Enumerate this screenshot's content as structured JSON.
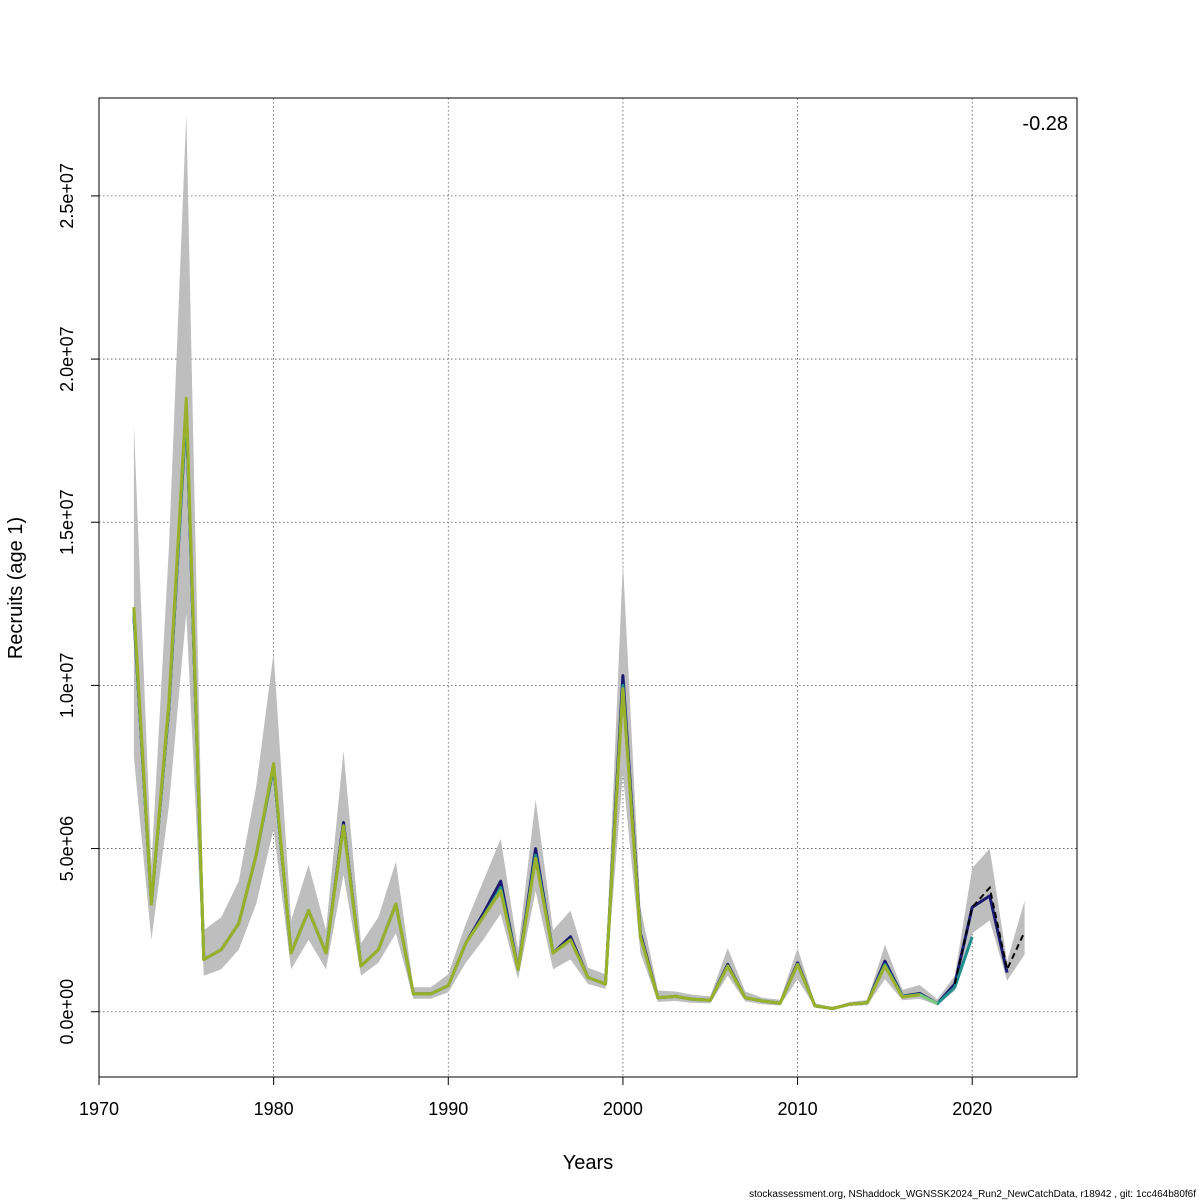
{
  "chart_data": {
    "type": "line",
    "title": "",
    "xlabel": "Years",
    "ylabel": "Recruits (age 1)",
    "annotation": "-0.28",
    "footer": "stockassessment.org, NShaddock_WGNSSK2024_Run2_NewCatchData, r18942 , git: 1cc464b80f6f",
    "xlim": [
      1970,
      2026
    ],
    "ylim": [
      -2000000,
      28000000
    ],
    "x_ticks": [
      1970,
      1980,
      1990,
      2000,
      2010,
      2020
    ],
    "x_tick_labels": [
      "1970",
      "1980",
      "1990",
      "2000",
      "2010",
      "2020"
    ],
    "y_ticks": [
      0,
      5000000,
      10000000,
      15000000,
      20000000,
      25000000
    ],
    "y_tick_labels": [
      "0.0e+00",
      "5.0e+06",
      "1.0e+07",
      "1.5e+07",
      "2.0e+07",
      "2.5e+07"
    ],
    "grid": true,
    "band_color": "#bebebe",
    "band": {
      "years": [
        1972,
        1973,
        1974,
        1975,
        1976,
        1977,
        1978,
        1979,
        1980,
        1981,
        1982,
        1983,
        1984,
        1985,
        1986,
        1987,
        1988,
        1989,
        1990,
        1991,
        1992,
        1993,
        1994,
        1995,
        1996,
        1997,
        1998,
        1999,
        2000,
        2001,
        2002,
        2003,
        2004,
        2005,
        2006,
        2007,
        2008,
        2009,
        2010,
        2011,
        2012,
        2013,
        2014,
        2015,
        2016,
        2017,
        2018,
        2019,
        2020,
        2021,
        2022,
        2023
      ],
      "lower": [
        7800000,
        2200000,
        6300000,
        12200000,
        1100000,
        1300000,
        1900000,
        3300000,
        5600000,
        1300000,
        2200000,
        1300000,
        4200000,
        1100000,
        1500000,
        2400000,
        400000,
        400000,
        600000,
        1500000,
        2200000,
        3000000,
        1000000,
        3700000,
        1300000,
        1600000,
        850000,
        700000,
        7300000,
        1800000,
        300000,
        330000,
        270000,
        260000,
        1100000,
        320000,
        230000,
        190000,
        1000000,
        130000,
        60000,
        180000,
        200000,
        1000000,
        350000,
        400000,
        200000,
        650000,
        2400000,
        2800000,
        950000,
        1750000
      ],
      "upper": [
        18000000,
        4500000,
        14200000,
        27500000,
        2500000,
        2900000,
        4000000,
        6900000,
        11000000,
        2800000,
        4500000,
        2500000,
        8000000,
        2100000,
        2900000,
        4600000,
        750000,
        750000,
        1150000,
        2700000,
        4000000,
        5300000,
        1900000,
        6500000,
        2500000,
        3100000,
        1350000,
        1150000,
        13800000,
        3200000,
        650000,
        620000,
        520000,
        470000,
        1950000,
        620000,
        430000,
        370000,
        1950000,
        260000,
        140000,
        300000,
        360000,
        2050000,
        670000,
        820000,
        380000,
        1100000,
        4400000,
        5000000,
        1550000,
        3400000
      ]
    },
    "series": [
      {
        "color": "#191970",
        "years": [
          1972,
          1973,
          1974,
          1975,
          1976,
          1977,
          1978,
          1979,
          1980,
          1981,
          1982,
          1983,
          1984,
          1985,
          1986,
          1987,
          1988,
          1989,
          1990,
          1991,
          1992,
          1993,
          1994,
          1995,
          1996,
          1997,
          1998,
          1999,
          2000,
          2001,
          2002,
          2003,
          2004,
          2005,
          2006,
          2007,
          2008,
          2009,
          2010,
          2011,
          2012,
          2013,
          2014,
          2015,
          2016,
          2017,
          2018,
          2019,
          2020,
          2021,
          2022
        ],
        "values": [
          12100000,
          3300000,
          9300000,
          18400000,
          1600000,
          1900000,
          2700000,
          4800000,
          7500000,
          1800000,
          3100000,
          1800000,
          5800000,
          1400000,
          1900000,
          3300000,
          550000,
          550000,
          800000,
          2100000,
          3000000,
          4000000,
          1300000,
          5000000,
          1800000,
          2300000,
          1050000,
          850000,
          10300000,
          2400000,
          430000,
          470000,
          380000,
          350000,
          1450000,
          430000,
          330000,
          260000,
          1500000,
          180000,
          100000,
          230000,
          280000,
          1550000,
          480000,
          560000,
          250000,
          850000,
          3200000,
          3550000,
          1200000
        ]
      },
      {
        "color": "#21908c",
        "years": [
          1972,
          1973,
          1974,
          1975,
          1976,
          1977,
          1978,
          1979,
          1980,
          1981,
          1982,
          1983,
          1984,
          1985,
          1986,
          1987,
          1988,
          1989,
          1990,
          1991,
          1992,
          1993,
          1994,
          1995,
          1996,
          1997,
          1998,
          1999,
          2000,
          2001,
          2002,
          2003,
          2004,
          2005,
          2006,
          2007,
          2008,
          2009,
          2010,
          2011,
          2012,
          2013,
          2014,
          2015,
          2016,
          2017,
          2018,
          2019,
          2020
        ],
        "values": [
          12200000,
          3300000,
          9400000,
          18500000,
          1600000,
          1900000,
          2700000,
          4800000,
          7500000,
          1800000,
          3100000,
          1800000,
          5700000,
          1400000,
          1900000,
          3300000,
          550000,
          550000,
          800000,
          2100000,
          2900000,
          3800000,
          1300000,
          4800000,
          1800000,
          2200000,
          1050000,
          850000,
          10000000,
          2300000,
          430000,
          470000,
          380000,
          350000,
          1400000,
          430000,
          330000,
          260000,
          1450000,
          180000,
          100000,
          230000,
          280000,
          1450000,
          470000,
          530000,
          250000,
          750000,
          2300000
        ]
      },
      {
        "color": "#7fc97f",
        "years": [
          1972,
          1973,
          1974,
          1975,
          1976,
          1977,
          1978,
          1979,
          1980,
          1981,
          1982,
          1983,
          1984,
          1985,
          1986,
          1987,
          1988,
          1989,
          1990,
          1991,
          1992,
          1993,
          1994,
          1995,
          1996,
          1997,
          1998,
          1999,
          2000,
          2001,
          2002,
          2003,
          2004,
          2005,
          2006,
          2007,
          2008,
          2009,
          2010,
          2011,
          2012,
          2013,
          2014,
          2015,
          2016,
          2017,
          2018
        ],
        "values": [
          12300000,
          3300000,
          9400000,
          18700000,
          1600000,
          1900000,
          2700000,
          4800000,
          7600000,
          1800000,
          3100000,
          1800000,
          5700000,
          1400000,
          1900000,
          3300000,
          550000,
          550000,
          800000,
          2100000,
          2900000,
          3700000,
          1300000,
          4700000,
          1800000,
          2200000,
          1050000,
          850000,
          9900000,
          2300000,
          430000,
          470000,
          380000,
          350000,
          1400000,
          430000,
          330000,
          260000,
          1450000,
          180000,
          100000,
          230000,
          280000,
          1400000,
          460000,
          520000,
          250000
        ]
      },
      {
        "color": "#9ab02a",
        "years": [
          1972,
          1973,
          1974,
          1975,
          1976,
          1977,
          1978,
          1979,
          1980,
          1981,
          1982,
          1983,
          1984,
          1985,
          1986,
          1987,
          1988,
          1989,
          1990,
          1991,
          1992,
          1993,
          1994,
          1995,
          1996,
          1997,
          1998,
          1999,
          2000,
          2001,
          2002,
          2003,
          2004,
          2005,
          2006,
          2007,
          2008,
          2009,
          2010,
          2011,
          2012,
          2013,
          2014,
          2015,
          2016,
          2017
        ],
        "values": [
          12400000,
          3300000,
          9500000,
          18800000,
          1600000,
          1900000,
          2700000,
          4800000,
          7600000,
          1800000,
          3100000,
          1800000,
          5700000,
          1400000,
          1900000,
          3300000,
          550000,
          550000,
          800000,
          2100000,
          2900000,
          3700000,
          1300000,
          4700000,
          1800000,
          2200000,
          1050000,
          850000,
          9900000,
          2300000,
          430000,
          470000,
          380000,
          350000,
          1400000,
          430000,
          330000,
          260000,
          1450000,
          180000,
          100000,
          230000,
          280000,
          1400000,
          450000,
          520000
        ]
      }
    ],
    "estimate_line": {
      "color": "#000000",
      "style": "dashed",
      "years": [
        2019,
        2020,
        2021,
        2022,
        2023
      ],
      "values": [
        850000,
        3200000,
        3800000,
        1300000,
        2450000
      ]
    }
  }
}
